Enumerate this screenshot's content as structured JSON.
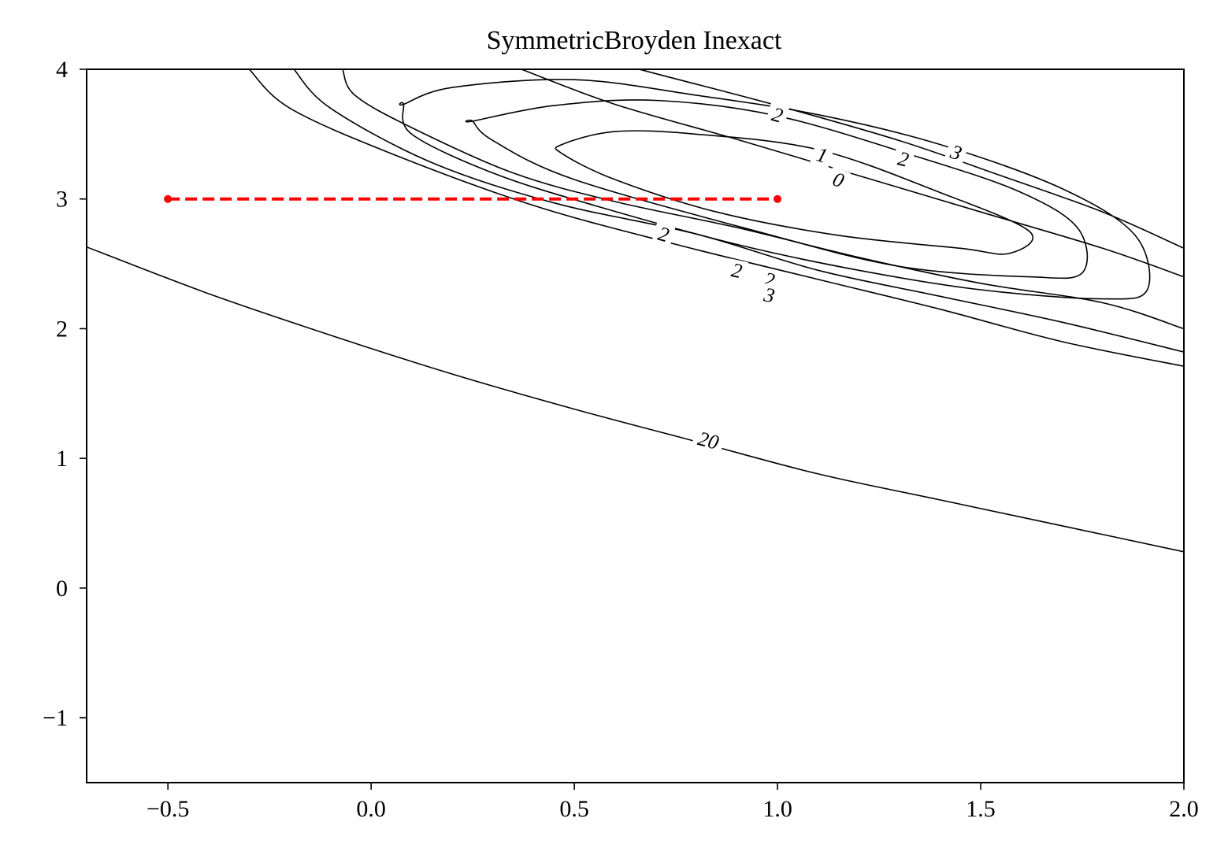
{
  "chart_data": {
    "type": "line",
    "title": "SymmetricBroyden Inexact",
    "xlabel": "",
    "ylabel": "",
    "xlim": [
      -0.7,
      2.0
    ],
    "ylim": [
      -1.5,
      4.0
    ],
    "x_ticks": [
      "−0.5",
      "0.0",
      "0.5",
      "1.0",
      "1.5",
      "2.0"
    ],
    "x_tick_values": [
      -0.5,
      0.0,
      0.5,
      1.0,
      1.5,
      2.0
    ],
    "y_ticks": [
      "−1",
      "0",
      "1",
      "2",
      "3",
      "4"
    ],
    "y_tick_values": [
      -1,
      0,
      1,
      2,
      3,
      4
    ],
    "grid": false,
    "colors": {
      "contour": "#000000",
      "path": "#ff0000",
      "axes": "#000000"
    },
    "contours": [
      {
        "kind": "ellipse",
        "level": "0",
        "points": [
          [
            0.47,
            3.42
          ],
          [
            0.6,
            3.52
          ],
          [
            0.8,
            3.5
          ],
          [
            1.1,
            3.38
          ],
          [
            1.4,
            3.05
          ],
          [
            1.62,
            2.75
          ],
          [
            1.57,
            2.58
          ],
          [
            1.45,
            2.62
          ],
          [
            1.15,
            2.72
          ],
          [
            0.85,
            2.9
          ],
          [
            0.6,
            3.15
          ],
          [
            0.47,
            3.35
          ]
        ],
        "labels": [
          {
            "text": "0",
            "x": 1.15,
            "y": 3.15
          }
        ]
      },
      {
        "kind": "ellipse",
        "level": "1",
        "points": [
          [
            0.25,
            3.6
          ],
          [
            0.45,
            3.72
          ],
          [
            0.7,
            3.76
          ],
          [
            1.0,
            3.64
          ],
          [
            1.35,
            3.32
          ],
          [
            1.6,
            3.05
          ],
          [
            1.74,
            2.77
          ],
          [
            1.75,
            2.43
          ],
          [
            1.62,
            2.4
          ],
          [
            1.3,
            2.48
          ],
          [
            0.95,
            2.75
          ],
          [
            0.5,
            3.15
          ],
          [
            0.3,
            3.45
          ],
          [
            0.25,
            3.6
          ]
        ],
        "labels": [
          {
            "text": "1",
            "x": 1.11,
            "y": 3.34
          },
          {
            "text": "2",
            "x": 0.72,
            "y": 2.73
          }
        ]
      },
      {
        "kind": "ellipse",
        "level": "2",
        "points": [
          [
            0.08,
            3.73
          ],
          [
            0.2,
            3.86
          ],
          [
            0.5,
            3.92
          ],
          [
            0.8,
            3.8
          ],
          [
            1.1,
            3.65
          ],
          [
            1.4,
            3.42
          ],
          [
            1.7,
            3.08
          ],
          [
            1.88,
            2.72
          ],
          [
            1.91,
            2.3
          ],
          [
            1.8,
            2.23
          ],
          [
            1.5,
            2.3
          ],
          [
            1.2,
            2.45
          ],
          [
            0.9,
            2.65
          ],
          [
            0.55,
            2.95
          ],
          [
            0.3,
            3.2
          ],
          [
            0.1,
            3.5
          ],
          [
            0.08,
            3.73
          ]
        ],
        "labels": [
          {
            "text": "2",
            "x": 1.31,
            "y": 3.31
          },
          {
            "text": "2",
            "x": 0.9,
            "y": 2.45
          }
        ]
      },
      {
        "kind": "open",
        "level": "2",
        "points": [
          [
            -0.07,
            4.0
          ],
          [
            -0.04,
            3.8
          ],
          [
            0.1,
            3.55
          ],
          [
            0.35,
            3.2
          ],
          [
            0.6,
            2.98
          ],
          [
            0.9,
            2.78
          ],
          [
            1.2,
            2.55
          ],
          [
            1.5,
            2.35
          ],
          [
            1.8,
            2.2
          ],
          [
            2.0,
            2.0
          ]
        ],
        "labels": [
          {
            "text": "2",
            "x": 0.98,
            "y": 2.38
          }
        ]
      },
      {
        "kind": "open",
        "level": "2",
        "points": [
          [
            2.0,
            2.4
          ],
          [
            1.8,
            2.62
          ],
          [
            1.5,
            2.9
          ],
          [
            1.2,
            3.18
          ],
          [
            0.9,
            3.46
          ],
          [
            0.6,
            3.73
          ],
          [
            0.37,
            4.0
          ]
        ],
        "labels": [
          {
            "text": "2",
            "x": 1.0,
            "y": 3.65
          }
        ]
      },
      {
        "kind": "open",
        "level": "3",
        "points": [
          [
            -0.19,
            4.0
          ],
          [
            -0.1,
            3.7
          ],
          [
            0.15,
            3.28
          ],
          [
            0.45,
            2.97
          ],
          [
            0.8,
            2.73
          ],
          [
            1.1,
            2.45
          ],
          [
            1.4,
            2.25
          ],
          [
            1.7,
            2.05
          ],
          [
            2.0,
            1.82
          ]
        ],
        "labels": [
          {
            "text": "3",
            "x": 0.98,
            "y": 2.26
          }
        ]
      },
      {
        "kind": "open",
        "level": "3",
        "points": [
          [
            -0.3,
            4.0
          ],
          [
            -0.2,
            3.7
          ],
          [
            0.05,
            3.35
          ],
          [
            0.4,
            2.95
          ],
          [
            0.75,
            2.65
          ],
          [
            1.1,
            2.38
          ],
          [
            1.4,
            2.15
          ],
          [
            1.7,
            1.9
          ],
          [
            2.0,
            1.71
          ]
        ],
        "labels": []
      },
      {
        "kind": "open",
        "level": "3",
        "points": [
          [
            2.0,
            2.62
          ],
          [
            1.8,
            2.9
          ],
          [
            1.55,
            3.18
          ],
          [
            1.3,
            3.45
          ],
          [
            1.0,
            3.72
          ],
          [
            0.72,
            3.95
          ],
          [
            0.66,
            4.0
          ]
        ],
        "labels": [
          {
            "text": "3",
            "x": 1.44,
            "y": 3.36
          }
        ]
      },
      {
        "kind": "open",
        "level": "20",
        "points": [
          [
            -0.7,
            2.63
          ],
          [
            -0.4,
            2.27
          ],
          [
            -0.1,
            1.95
          ],
          [
            0.2,
            1.65
          ],
          [
            0.5,
            1.38
          ],
          [
            0.8,
            1.13
          ],
          [
            1.1,
            0.88
          ],
          [
            1.4,
            0.68
          ],
          [
            1.7,
            0.48
          ],
          [
            2.0,
            0.28
          ]
        ],
        "labels": [
          {
            "text": "20",
            "x": 0.83,
            "y": 1.14
          }
        ]
      }
    ],
    "series": [
      {
        "style": "dashed",
        "marker": "point",
        "x": [
          -0.5,
          1.0
        ],
        "y": [
          3.0,
          3.0
        ]
      }
    ]
  }
}
